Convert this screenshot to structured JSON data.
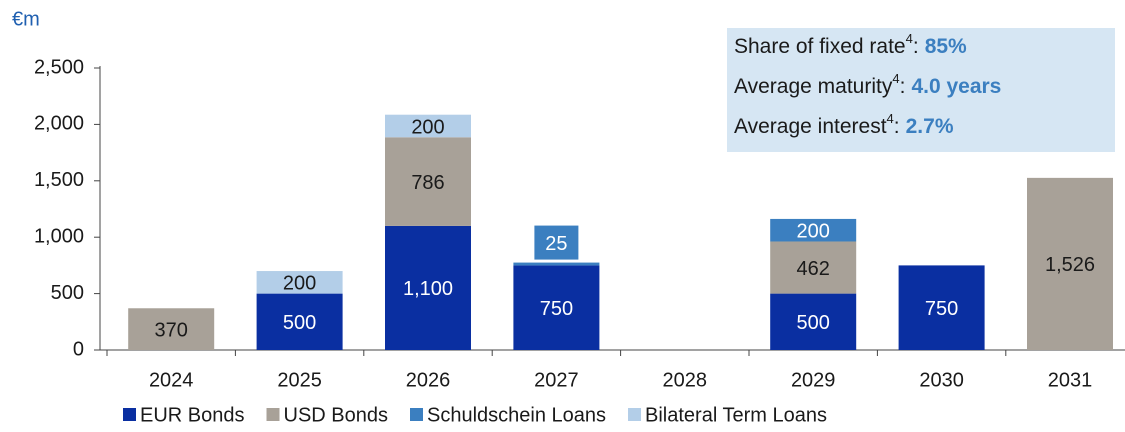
{
  "chart_data": {
    "type": "stacked_bar",
    "unit_label": "€m",
    "categories": [
      "2024",
      "2025",
      "2026",
      "2027",
      "2028",
      "2029",
      "2030",
      "2031"
    ],
    "series": [
      {
        "name": "EUR Bonds",
        "color": "#0a2fa1",
        "label_color": "#ffffff",
        "values": [
          0,
          500,
          1100,
          750,
          0,
          500,
          750,
          0
        ],
        "value_labels": [
          null,
          "500",
          "1,100",
          "750",
          null,
          "500",
          "750",
          null
        ]
      },
      {
        "name": "USD Bonds",
        "color": "#a8a198",
        "label_color": "#1a1a1a",
        "values": [
          370,
          0,
          786,
          0,
          0,
          462,
          0,
          1526
        ],
        "value_labels": [
          "370",
          null,
          "786",
          null,
          null,
          "462",
          null,
          "1,526"
        ]
      },
      {
        "name": "Schuldschein Loans",
        "color": "#3b7fc0",
        "label_color": "#ffffff",
        "values": [
          0,
          0,
          0,
          25,
          0,
          200,
          0,
          0
        ],
        "value_labels": [
          null,
          null,
          null,
          "25",
          null,
          "200",
          null,
          null
        ]
      },
      {
        "name": "Bilateral Term Loans",
        "color": "#b3cee8",
        "label_color": "#1a1a1a",
        "values": [
          0,
          200,
          200,
          0,
          0,
          0,
          0,
          0
        ],
        "value_labels": [
          null,
          "200",
          "200",
          null,
          null,
          null,
          null,
          null
        ]
      }
    ],
    "ylim": [
      0,
      2500
    ],
    "yticks": [
      0,
      500,
      {
        "value": 1000,
        "label": "1,000"
      },
      {
        "value": 1500,
        "label": "1,500"
      },
      {
        "value": 2000,
        "label": "2,000"
      },
      {
        "value": 2500,
        "label": "2,500"
      }
    ],
    "grid": false,
    "legend": "bottom",
    "info_box": [
      {
        "label": "Share of fixed rate",
        "note": "4",
        "separator": ":",
        "value": "85%"
      },
      {
        "label": "Average maturity",
        "note": "4",
        "separator": ":",
        "value": "4.0 years"
      },
      {
        "label": "Average interest",
        "note": "4",
        "separator": ":",
        "value": "2.7%"
      }
    ]
  }
}
